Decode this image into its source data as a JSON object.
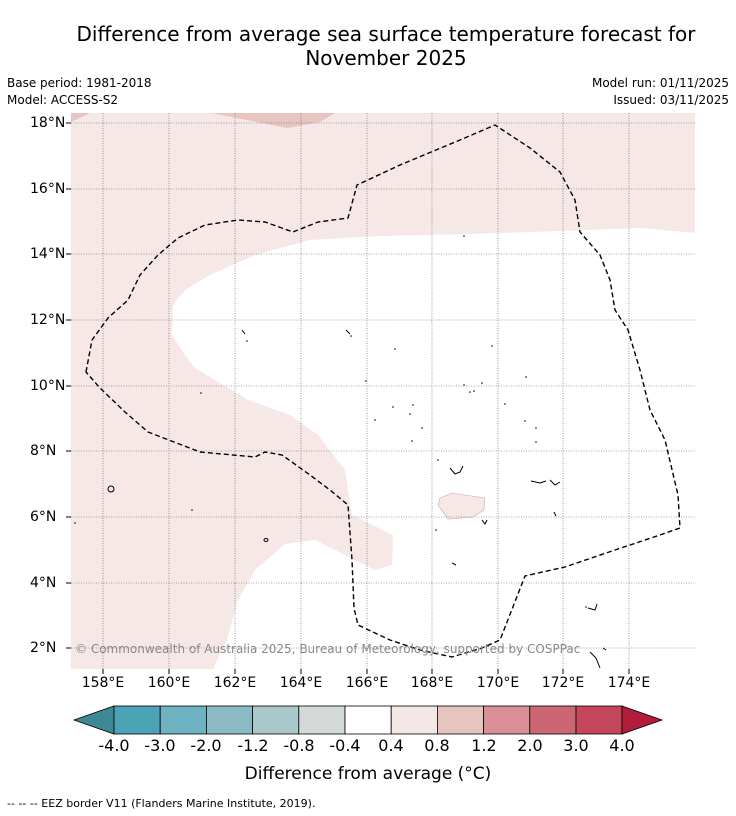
{
  "title_line1": "Difference from average sea surface temperature forecast for",
  "title_line2": "November 2025",
  "base_period": "Base period: 1981-2018",
  "model": "Model: ACCESS-S2",
  "model_run": "Model run: 01/11/2025",
  "issued": "Issued: 03/11/2025",
  "copyright": "© Commonwealth of Australia 2025, Bureau of Meteorology, supported by COSPPac",
  "footer": "--  --  -- EEZ border V11 (Flanders Marine Institute, 2019).",
  "map": {
    "lat_labels": [
      "18°N",
      "16°N",
      "14°N",
      "12°N",
      "10°N",
      "8°N",
      "6°N",
      "4°N",
      "2°N"
    ],
    "lon_labels": [
      "158°E",
      "160°E",
      "162°E",
      "164°E",
      "166°E",
      "168°E",
      "170°E",
      "172°E",
      "174°E"
    ],
    "anomaly_regions": [
      "0.4 to 0.8 (light pink)",
      "0.8 to 1.2 (pink)",
      "-0.4 to 0.4 (white)"
    ]
  },
  "colorbar": {
    "title": "Difference from average ($^\\circ$C)",
    "title_display": "Difference from average (°C)",
    "labels": [
      "-4.0",
      "-3.0",
      "-2.0",
      "-1.2",
      "-0.8",
      "-0.4",
      "0.4",
      "0.8",
      "1.2",
      "2.0",
      "3.0",
      "4.0"
    ],
    "colors": [
      "#3d8a96",
      "#4aa4b5",
      "#6eb1c0",
      "#8cbac4",
      "#a9c8cb",
      "#d3d8d9",
      "#ffffff",
      "#f5e7e6",
      "#e8c4c0",
      "#d98f95",
      "#cd6670",
      "#c4465a",
      "#b01e3c"
    ]
  },
  "colors": {
    "light_pink": "#f5e8e7",
    "pink": "#e8c5c0",
    "grid": "#555555"
  }
}
